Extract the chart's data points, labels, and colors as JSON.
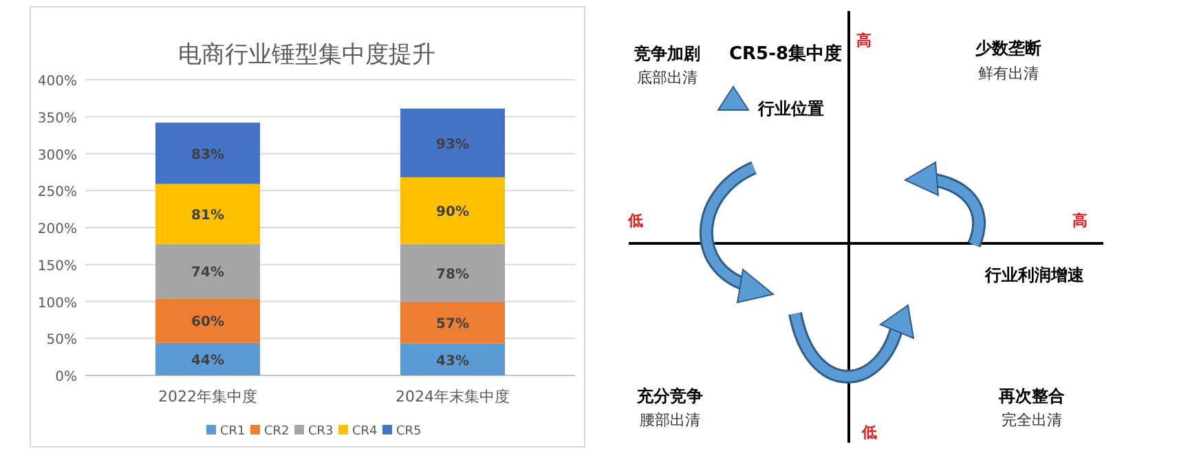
{
  "chart_data": [
    {
      "type": "bar",
      "stacked": true,
      "title": "电商行业锤型集中度提升",
      "categories": [
        "2022年集中度",
        "2024年末集中度"
      ],
      "series": [
        {
          "name": "CR1",
          "color": "#5b9bd5",
          "values": [
            44,
            43
          ],
          "value_labels": [
            "44%",
            "43%"
          ]
        },
        {
          "name": "CR2",
          "color": "#ed7d31",
          "values": [
            60,
            57
          ],
          "value_labels": [
            "60%",
            "57%"
          ]
        },
        {
          "name": "CR3",
          "color": "#a5a5a5",
          "values": [
            74,
            78
          ],
          "value_labels": [
            "74%",
            "78%"
          ]
        },
        {
          "name": "CR4",
          "color": "#ffc000",
          "values": [
            81,
            90
          ],
          "value_labels": [
            "81%",
            "90%"
          ]
        },
        {
          "name": "CR5",
          "color": "#4472c4",
          "values": [
            83,
            93
          ],
          "value_labels": [
            "83%",
            "93%"
          ]
        }
      ],
      "ylim": [
        0,
        400
      ],
      "yticks": [
        {
          "value": 0,
          "label": "0%"
        },
        {
          "value": 50,
          "label": "50%"
        },
        {
          "value": 100,
          "label": "100%"
        },
        {
          "value": 150,
          "label": "150%"
        },
        {
          "value": 200,
          "label": "200%"
        },
        {
          "value": 250,
          "label": "250%"
        },
        {
          "value": 300,
          "label": "300%"
        },
        {
          "value": 350,
          "label": "350%"
        },
        {
          "value": 400,
          "label": "400%"
        }
      ],
      "grid": "y",
      "legend": "bottom"
    },
    {
      "type": "other",
      "annotations": [
        "高",
        "低",
        "低",
        "高",
        "CR5-8集中度",
        "行业位置",
        "竞争加剧",
        "底部出清",
        "少数垄断",
        "鲜有出清",
        "行业利润增速",
        "充分竞争",
        "腰部出清",
        "再次整合",
        "完全出清"
      ]
    }
  ]
}
